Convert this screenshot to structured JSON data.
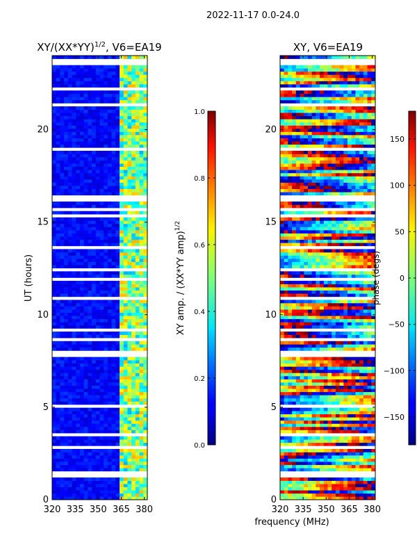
{
  "suptitle": "2022-11-17 0.0-24.0",
  "chart_data": [
    {
      "type": "heatmap",
      "title_prefix": "XY/(XX*YY)",
      "title_exp": "1/2",
      "title_suffix": ", V6=EA19",
      "ylabel": "UT (hours)",
      "xlabel": "",
      "xlim": [
        320,
        382
      ],
      "ylim": [
        0,
        24
      ],
      "xticks": [
        320,
        335,
        350,
        365,
        380
      ],
      "yticks": [
        0,
        5,
        10,
        15,
        20
      ],
      "colorbar": {
        "label_prefix": "XY amp. / (XX*YY amp)",
        "label_exp": "1/2",
        "range": [
          0.0,
          1.0
        ],
        "ticks": [
          "0.0",
          "0.2",
          "0.4",
          "0.6",
          "0.8",
          "1.0"
        ]
      },
      "description": "normalized amplitude low (~0.05-0.2) at 320-363 MHz, higher (~0.3-0.7) at 363-382 MHz"
    },
    {
      "type": "heatmap",
      "title": "XY, V6=EA19",
      "xlabel": "frequency (MHz)",
      "ylabel": "",
      "xlim": [
        320,
        382
      ],
      "ylim": [
        0,
        24
      ],
      "xticks": [
        320,
        335,
        350,
        365,
        380
      ],
      "yticks": [
        0,
        5,
        10,
        15,
        20
      ],
      "colorbar": {
        "label": "phase (degs)",
        "range": [
          -180,
          180
        ],
        "ticks": [
          "−150",
          "−100",
          "−50",
          "0",
          "50",
          "100",
          "150"
        ]
      },
      "description": "phase spans full -180 to 180 degree range with banded structure"
    }
  ]
}
